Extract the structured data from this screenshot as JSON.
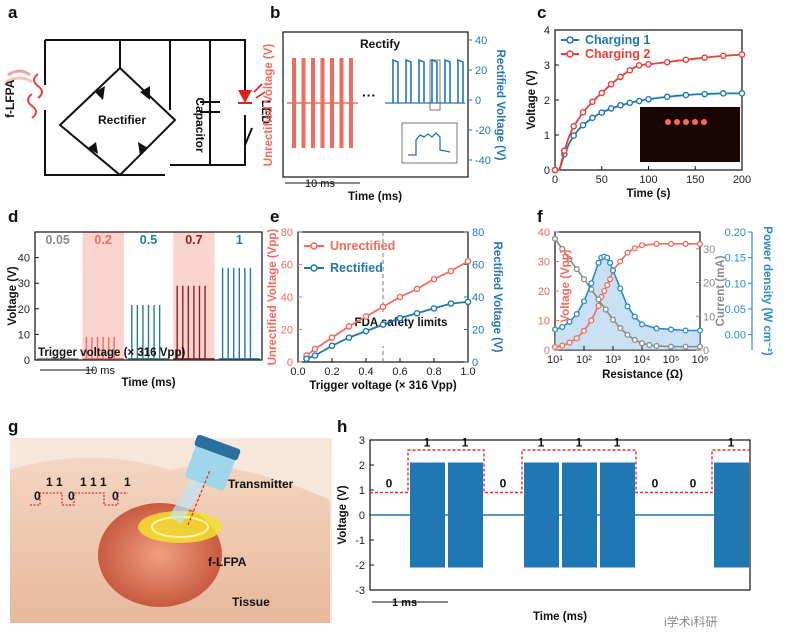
{
  "colors": {
    "red": "#f26b5c",
    "blue": "#1f77b4",
    "blueL": "#2a8bc8",
    "teal": "#2a7e7e",
    "darkred": "#8a2222",
    "gray": "#8a8a8a",
    "black": "#222222"
  },
  "panel_a": {
    "letter": "a",
    "source": "f-LFPA",
    "rectifier": "Rectifier",
    "capacitor": "Capacitor",
    "led": "LED"
  },
  "panel_b": {
    "letter": "b",
    "ylabel_left": "Unrectified Voltage (V)",
    "ylabel_right": "Rectified Voltage (V)",
    "xlabel": "Time (ms)",
    "rectify": "Rectify",
    "scale": "10 ms",
    "dots": "···"
  },
  "panel_g": {
    "letter": "g",
    "transmitter": "Transmitter",
    "receiver": "f-LFPA",
    "tissue": "Tissue",
    "bits": [
      "0",
      "1",
      "1",
      "0",
      "1",
      "1",
      "1",
      "0",
      "1"
    ]
  },
  "panel_h_bits": [
    "0",
    "1",
    "1",
    "0",
    "1",
    "1",
    "1",
    "0",
    "0",
    "1"
  ],
  "watermark": "i学术i科研",
  "chart_data": [
    {
      "panel": "c",
      "letter": "c",
      "type": "line",
      "xlabel": "Time (s)",
      "ylabel": "Voltage (V)",
      "xlim": [
        0,
        200
      ],
      "ylim": [
        0,
        4
      ],
      "xticks": [
        "0",
        "50",
        "100",
        "150",
        "200"
      ],
      "yticks": [
        "0",
        "1",
        "2",
        "3",
        "4"
      ],
      "legend_position": "top-left",
      "series": [
        {
          "name": "Charging 1",
          "color": "#1f77b4",
          "x": [
            0,
            5,
            10,
            15,
            20,
            25,
            30,
            35,
            40,
            45,
            50,
            55,
            60,
            65,
            70,
            75,
            80,
            85,
            90,
            95,
            100,
            110,
            120,
            130,
            140,
            150,
            160,
            170,
            180,
            190,
            200
          ],
          "y": [
            0,
            0.02,
            0.45,
            0.75,
            0.98,
            1.15,
            1.28,
            1.39,
            1.49,
            1.57,
            1.64,
            1.7,
            1.76,
            1.8,
            1.85,
            1.88,
            1.92,
            1.95,
            1.97,
            2.0,
            2.02,
            2.06,
            2.09,
            2.12,
            2.14,
            2.16,
            2.17,
            2.18,
            2.19,
            2.19,
            2.19
          ]
        },
        {
          "name": "Charging 2",
          "color": "#e8403a",
          "x": [
            0,
            5,
            10,
            15,
            20,
            25,
            30,
            35,
            40,
            45,
            50,
            55,
            60,
            65,
            70,
            75,
            80,
            85,
            90,
            95,
            100,
            110,
            120,
            130,
            140,
            150,
            160,
            170,
            180,
            190,
            200
          ],
          "y": [
            0,
            0.02,
            0.55,
            0.95,
            1.25,
            1.45,
            1.65,
            1.8,
            1.95,
            2.08,
            2.2,
            2.33,
            2.45,
            2.56,
            2.66,
            2.76,
            2.85,
            2.93,
            2.99,
            3.01,
            3.02,
            3.05,
            3.08,
            3.12,
            3.15,
            3.18,
            3.21,
            3.24,
            3.26,
            3.28,
            3.3
          ]
        }
      ]
    },
    {
      "panel": "d",
      "letter": "d",
      "type": "line",
      "xlabel": "Time (ms)",
      "ylabel": "Voltage (V)",
      "ylim": [
        0,
        50
      ],
      "yticks": [
        "0",
        "10",
        "20",
        "30",
        "40"
      ],
      "trigger_label": "Trigger voltage (× 316 Vpp)",
      "scale": "10 ms",
      "groups": [
        {
          "label": "0.05",
          "amplitude": 1.0,
          "color": "#8a8a8a",
          "shaded": false
        },
        {
          "label": "0.2",
          "amplitude": 9.0,
          "color": "#f26b5c",
          "shaded": true
        },
        {
          "label": "0.5",
          "amplitude": 21.5,
          "color": "#2a7e7e",
          "shaded": false
        },
        {
          "label": "0.7",
          "amplitude": 29.0,
          "color": "#8a2222",
          "shaded": true
        },
        {
          "label": "1",
          "amplitude": 36.0,
          "color": "#1f77b4",
          "shaded": false
        }
      ]
    },
    {
      "panel": "e",
      "letter": "e",
      "type": "line",
      "xlabel": "Trigger voltage (× 316 Vpp)",
      "ylabel": "Unrectified Voltage (Vpp)",
      "ylabel_right": "Rectified Voltage (V)",
      "xlim": [
        0,
        1.0
      ],
      "ylim": [
        0,
        80
      ],
      "ylim_right": [
        0,
        80
      ],
      "xticks": [
        "0.0",
        "0.2",
        "0.4",
        "0.6",
        "0.8",
        "1.0"
      ],
      "yticks": [
        "0",
        "20",
        "40",
        "60",
        "80"
      ],
      "yticks_right": [
        "0",
        "20",
        "40",
        "60",
        "80"
      ],
      "annotation": "FDA safety limits",
      "annotation_x": 0.5,
      "legend_position": "top-left",
      "series": [
        {
          "name": "Unrectified",
          "color": "#f26b5c",
          "axis": "left",
          "x": [
            0.05,
            0.1,
            0.2,
            0.3,
            0.4,
            0.5,
            0.6,
            0.7,
            0.8,
            0.9,
            1.0
          ],
          "y": [
            4,
            8,
            15,
            22,
            28,
            34,
            40,
            45,
            51,
            56,
            62
          ]
        },
        {
          "name": "Rectified",
          "color": "#1f77b4",
          "axis": "right",
          "x": [
            0.05,
            0.1,
            0.2,
            0.3,
            0.4,
            0.5,
            0.6,
            0.7,
            0.8,
            0.9,
            1.0
          ],
          "y": [
            2,
            4,
            10,
            15,
            19,
            23,
            27,
            30,
            33,
            36,
            37
          ]
        }
      ]
    },
    {
      "panel": "f",
      "letter": "f",
      "type": "line",
      "xlabel": "Resistance (Ω)",
      "ylabel": "Voltage (Vpp)",
      "ylabel_mid": "Current (mA)",
      "ylabel_right": "Power density (W cm⁻²)",
      "xscale": "log",
      "xlim": [
        1,
        6
      ],
      "ylim": [
        0,
        40
      ],
      "ylim_mid": [
        0,
        35
      ],
      "ylim_right": [
        -0.03,
        0.2
      ],
      "xticks": [
        "10¹",
        "10²",
        "10³",
        "10⁴",
        "10⁵",
        "10⁶"
      ],
      "yticks": [
        "0",
        "10",
        "20",
        "30",
        "40"
      ],
      "yticks_mid": [
        "0",
        "10",
        "20",
        "30"
      ],
      "yticks_right": [
        "0.00",
        "0.05",
        "0.10",
        "0.15",
        "0.20"
      ],
      "series": [
        {
          "name": "Voltage",
          "color": "#f26b5c",
          "axis": "left",
          "logx": [
            1,
            1.25,
            1.5,
            1.75,
            2,
            2.25,
            2.5,
            2.6,
            2.7,
            2.8,
            2.9,
            3,
            3.25,
            3.5,
            3.75,
            4,
            4.5,
            5,
            5.5,
            6
          ],
          "y": [
            1,
            1.5,
            2.5,
            4,
            6.5,
            10,
            15,
            18,
            20,
            22,
            24,
            27,
            30,
            33,
            34.5,
            35.5,
            36,
            36,
            36,
            36
          ]
        },
        {
          "name": "Current",
          "color": "#8a8a8a",
          "axis": "mid",
          "logx": [
            1,
            1.25,
            1.5,
            1.75,
            2,
            2.25,
            2.5,
            2.75,
            3,
            3.25,
            3.5,
            3.75,
            4,
            4.25,
            4.5,
            5,
            5.5,
            6
          ],
          "y": [
            33,
            30,
            27,
            24,
            21,
            18,
            15,
            12,
            9,
            6.5,
            4.5,
            3,
            2,
            1.5,
            1.2,
            1,
            1,
            1
          ]
        },
        {
          "name": "Power density",
          "color": "#2a8bc8",
          "axis": "right",
          "logx": [
            1,
            1.25,
            1.5,
            1.75,
            2,
            2.25,
            2.5,
            2.6,
            2.7,
            2.8,
            2.9,
            3,
            3.25,
            3.5,
            3.75,
            4,
            4.5,
            5,
            5.5,
            6
          ],
          "y": [
            0.01,
            0.015,
            0.025,
            0.04,
            0.065,
            0.1,
            0.14,
            0.15,
            0.152,
            0.15,
            0.14,
            0.125,
            0.09,
            0.055,
            0.035,
            0.02,
            0.012,
            0.01,
            0.008,
            0.008
          ]
        }
      ]
    },
    {
      "panel": "h",
      "letter": "h",
      "type": "line",
      "xlabel": "Time (ms)",
      "ylabel": "Voltage (V)",
      "ylim": [
        -3,
        3
      ],
      "yticks": [
        "-3",
        "-2",
        "-1",
        "0",
        "1",
        "2",
        "3"
      ],
      "scale": "1 ms",
      "bits": [
        0,
        1,
        1,
        0,
        1,
        1,
        1,
        0,
        0,
        1
      ]
    }
  ]
}
